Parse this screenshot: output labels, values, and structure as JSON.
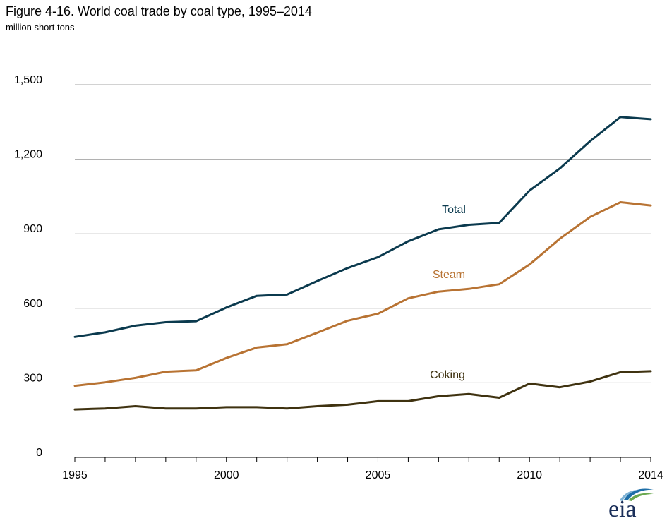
{
  "title": "Figure 4-16. World coal trade by coal type, 1995–2014",
  "subtitle": "million short tons",
  "logo_text": "eia",
  "colors": {
    "total": "#0b3a4e",
    "steam": "#b87333",
    "coking": "#3f3210",
    "grid": "#a6a6a6",
    "axis": "#000000"
  },
  "chart_data": {
    "type": "line",
    "title": "Figure 4-16. World coal trade by coal type, 1995–2014",
    "subtitle": "million short tons",
    "xlabel": "",
    "ylabel": "",
    "x": [
      1995,
      1996,
      1997,
      1998,
      1999,
      2000,
      2001,
      2002,
      2003,
      2004,
      2005,
      2006,
      2007,
      2008,
      2009,
      2010,
      2011,
      2012,
      2013,
      2014
    ],
    "xticks": [
      "1995",
      "2000",
      "2005",
      "2010",
      "2014"
    ],
    "yticks": [
      "0",
      "300",
      "600",
      "900",
      "1,200",
      "1,500"
    ],
    "ylim": [
      0,
      1500
    ],
    "grid": true,
    "legend": "inline labels",
    "series": [
      {
        "name": "Total",
        "color": "#0b3a4e",
        "values": [
          485,
          503,
          530,
          544,
          548,
          603,
          650,
          655,
          710,
          762,
          806,
          870,
          918,
          936,
          944,
          1074,
          1163,
          1273,
          1370,
          1361
        ]
      },
      {
        "name": "Steam",
        "color": "#b87333",
        "values": [
          288,
          302,
          320,
          345,
          350,
          400,
          442,
          455,
          502,
          550,
          578,
          640,
          667,
          678,
          697,
          776,
          880,
          968,
          1027,
          1014
        ]
      },
      {
        "name": "Coking",
        "color": "#3f3210",
        "values": [
          193,
          197,
          206,
          197,
          197,
          202,
          202,
          197,
          206,
          212,
          226,
          226,
          246,
          255,
          240,
          297,
          282,
          305,
          343,
          347
        ]
      }
    ]
  }
}
